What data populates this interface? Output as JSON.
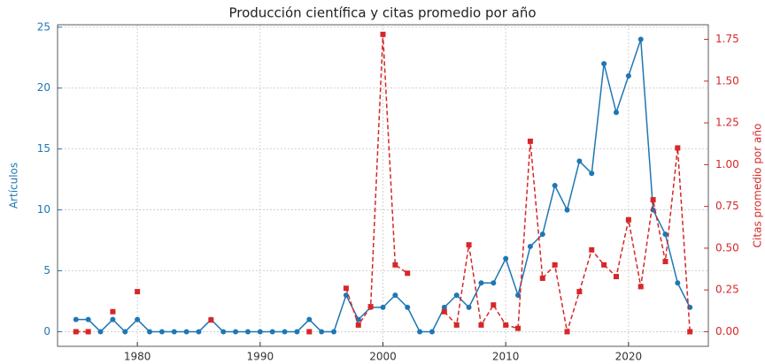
{
  "chart_data": {
    "type": "line",
    "title": "Producción científica y citas promedio por año",
    "ylabel": "Artículos",
    "y2label": "Citas promedio por año",
    "x": [
      1975,
      1976,
      1977,
      1978,
      1979,
      1980,
      1981,
      1982,
      1983,
      1984,
      1985,
      1986,
      1987,
      1988,
      1989,
      1990,
      1991,
      1992,
      1993,
      1994,
      1995,
      1996,
      1997,
      1998,
      1999,
      2000,
      2001,
      2002,
      2003,
      2004,
      2005,
      2006,
      2007,
      2008,
      2009,
      2010,
      2011,
      2012,
      2013,
      2014,
      2015,
      2016,
      2017,
      2018,
      2019,
      2020,
      2021,
      2022,
      2023,
      2024,
      2025
    ],
    "series": [
      {
        "name": "Artículos",
        "color": "#1f77b4",
        "axis": "y",
        "values": [
          1,
          1,
          0,
          1,
          0,
          1,
          0,
          0,
          0,
          0,
          0,
          1,
          0,
          0,
          0,
          0,
          0,
          0,
          0,
          1,
          0,
          0,
          3,
          1,
          2,
          2,
          3,
          2,
          0,
          0,
          2,
          3,
          2,
          4,
          4,
          6,
          3,
          7,
          8,
          12,
          10,
          14,
          13,
          22,
          18,
          21,
          24,
          10,
          8,
          4,
          2
        ]
      },
      {
        "name": "Citas promedio por año",
        "color": "#d62728",
        "axis": "y2",
        "values": [
          0,
          0,
          null,
          0.12,
          null,
          0.24,
          null,
          null,
          null,
          null,
          null,
          0.07,
          null,
          null,
          null,
          null,
          null,
          null,
          null,
          0,
          null,
          null,
          0.26,
          0.04,
          0.15,
          1.78,
          0.4,
          0.35,
          null,
          null,
          0.12,
          0.04,
          0.52,
          0.04,
          0.16,
          0.04,
          0.02,
          1.14,
          0.32,
          0.4,
          0,
          0.24,
          0.49,
          0.4,
          0.33,
          0.67,
          0.27,
          0.79,
          0.42,
          1.1,
          0
        ]
      }
    ],
    "xlim": [
      1973.5,
      2026.5
    ],
    "xticks": [
      1980,
      1990,
      2000,
      2010,
      2020
    ],
    "ylim": [
      -1.2,
      25.2
    ],
    "yticks": [
      0,
      5,
      10,
      15,
      20,
      25
    ],
    "y2lim": [
      -0.0875,
      1.8375
    ],
    "y2ticks": [
      {
        "value": 0,
        "label": "0.00"
      },
      {
        "value": 0.25,
        "label": "0.25"
      },
      {
        "value": 0.5,
        "label": "0.50"
      },
      {
        "value": 0.75,
        "label": "0.75"
      },
      {
        "value": 1,
        "label": "1.00"
      },
      {
        "value": 1.25,
        "label": "1.25"
      },
      {
        "value": 1.5,
        "label": "1.50"
      },
      {
        "value": 1.75,
        "label": "1.75"
      }
    ],
    "grid": true
  }
}
